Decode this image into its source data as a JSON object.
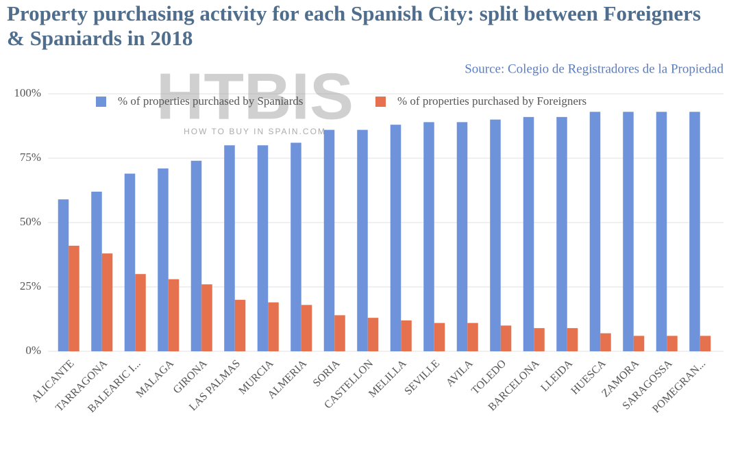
{
  "chart_data": {
    "type": "bar",
    "title": "Property purchasing activity for each Spanish City: split between Foreigners & Spaniards in 2018",
    "source": "Source: Colegio de Registradores de la Propiedad",
    "watermark": "HTBIS",
    "watermark_subtitle": "HOW TO BUY IN SPAIN.COM",
    "categories": [
      "ALICANTE",
      "TARRAGONA",
      "BALEARIC I...",
      "MALAGA",
      "GIRONA",
      "LAS PALMAS",
      "MURCIA",
      "ALMERIA",
      "SORIA",
      "CASTELLON",
      "MELILLA",
      "SEVILLE",
      "AVILA",
      "TOLEDO",
      "BARCELONA",
      "LLEIDA",
      "HUESCA",
      "ZAMORA",
      "SARAGOSSA",
      "POMEGRAN..."
    ],
    "series": [
      {
        "name": "% of properties purchased by Spaniards",
        "color": "#6f93db",
        "values": [
          59,
          62,
          69,
          71,
          74,
          80,
          80,
          81,
          86,
          86,
          88,
          89,
          89,
          90,
          91,
          91,
          93,
          93,
          93,
          93
        ]
      },
      {
        "name": "% of properties purchased by Foreigners",
        "color": "#e6714f",
        "values": [
          41,
          38,
          30,
          28,
          26,
          20,
          19,
          18,
          14,
          13,
          12,
          11,
          11,
          10,
          9,
          9,
          7,
          6,
          6,
          6
        ]
      }
    ],
    "ylim": [
      0,
      100
    ],
    "yticks": [
      {
        "value": 0,
        "label": "0%"
      },
      {
        "value": 25,
        "label": "25%"
      },
      {
        "value": 50,
        "label": "50%"
      },
      {
        "value": 75,
        "label": "75%"
      },
      {
        "value": 100,
        "label": "100%"
      }
    ],
    "grid": true,
    "legend": "top"
  }
}
